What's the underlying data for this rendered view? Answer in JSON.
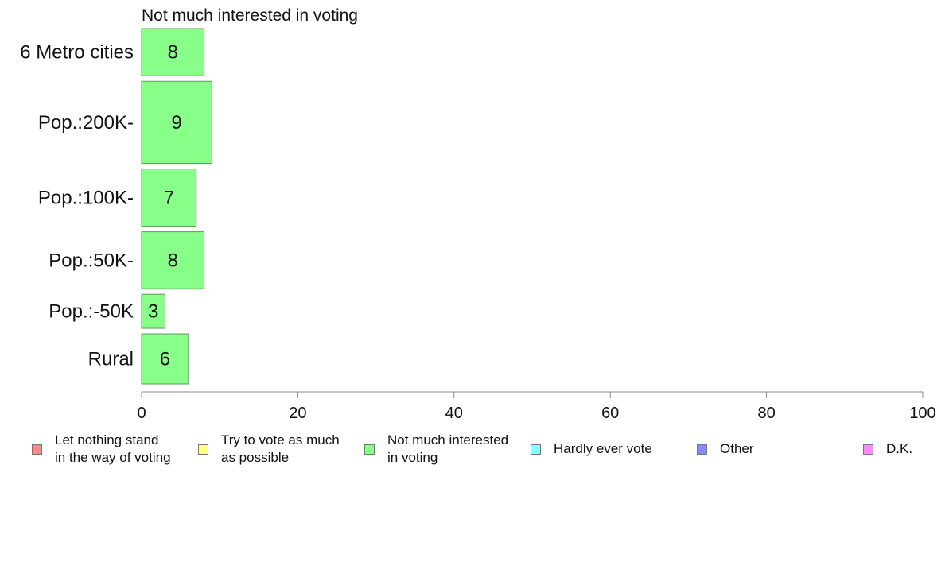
{
  "chart_data": {
    "type": "bar",
    "orientation": "horizontal",
    "title": "Not much interested in voting",
    "categories": [
      "6 Metro cities",
      "Pop.:200K-",
      "Pop.:100K-",
      "Pop.:50K-",
      "Pop.:-50K",
      "Rural"
    ],
    "values": [
      8,
      9,
      7,
      8,
      3,
      6
    ],
    "value_labels": [
      "8",
      "9",
      "7",
      "8",
      "3",
      "6"
    ],
    "bar_width_shares": [
      0.144,
      0.251,
      0.175,
      0.174,
      0.104,
      0.153
    ],
    "xlim": [
      0,
      100
    ],
    "x_ticks": [
      "0",
      "20",
      "40",
      "60",
      "80",
      "100"
    ],
    "xlabel": "",
    "ylabel": "",
    "grid": false,
    "bar_color": "#88ff88",
    "bar_edge_color": "#5a9a5a",
    "legend_position": "bottom",
    "legend": [
      {
        "label": "Let nothing stand\nin the way of voting",
        "color": "#ff8888"
      },
      {
        "label": "Try to vote as much\nas possible",
        "color": "#ffff88"
      },
      {
        "label": "Not much interested\nin voting",
        "color": "#88ff88"
      },
      {
        "label": "Hardly ever vote",
        "color": "#88ffff"
      },
      {
        "label": "Other",
        "color": "#8888ff"
      },
      {
        "label": "D.K.",
        "color": "#ff88ff"
      }
    ]
  }
}
